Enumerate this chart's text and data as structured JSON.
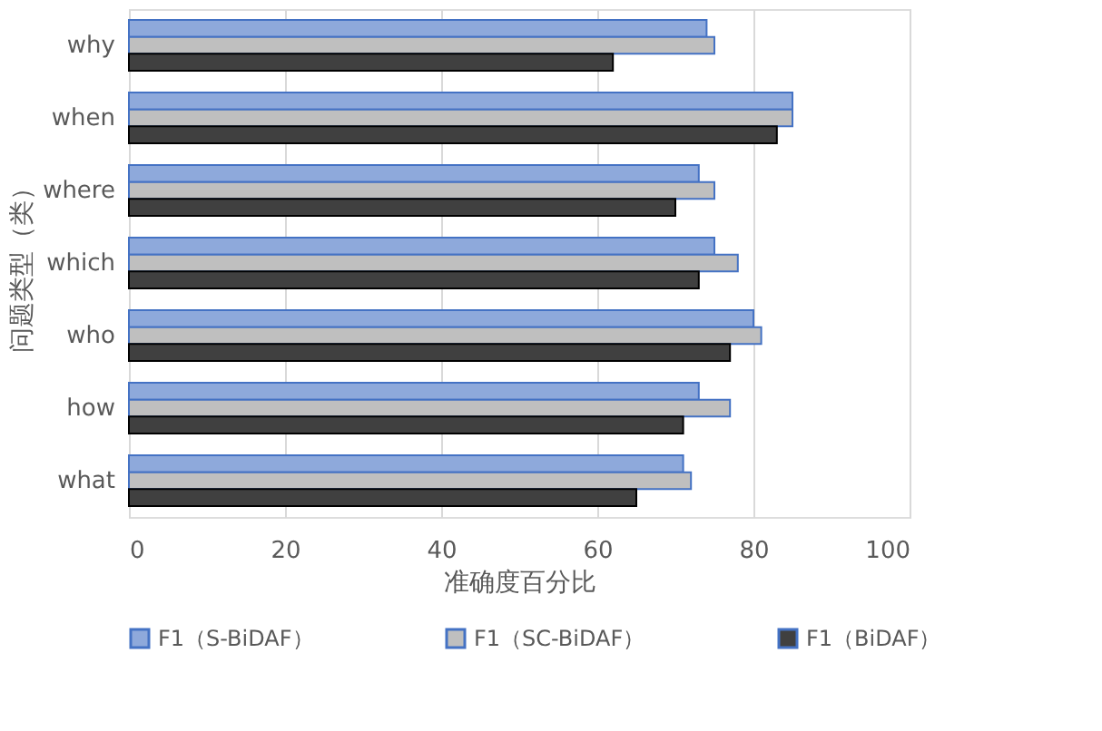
{
  "chart_data": {
    "type": "bar",
    "orientation": "horizontal",
    "xlabel": "准确度百分比",
    "ylabel": "问题类型（类）",
    "categories": [
      "why",
      "when",
      "where",
      "which",
      "who",
      "how",
      "what"
    ],
    "series": [
      {
        "name": "F1（S-BiDAF）",
        "color": "#8ea9db",
        "values": [
          74,
          85,
          73,
          75,
          80,
          73,
          71
        ]
      },
      {
        "name": "F1（SC-BiDAF）",
        "color": "#bfbfbf",
        "values": [
          75,
          85,
          75,
          78,
          81,
          77,
          72
        ]
      },
      {
        "name": "F1（BiDAF）",
        "color": "#404040",
        "values": [
          62,
          83,
          70,
          73,
          77,
          71,
          65
        ]
      }
    ],
    "xlim": [
      0,
      100
    ],
    "xticks": [
      0,
      20,
      40,
      60,
      80,
      100
    ],
    "grid": "x",
    "legend": "bottom"
  }
}
